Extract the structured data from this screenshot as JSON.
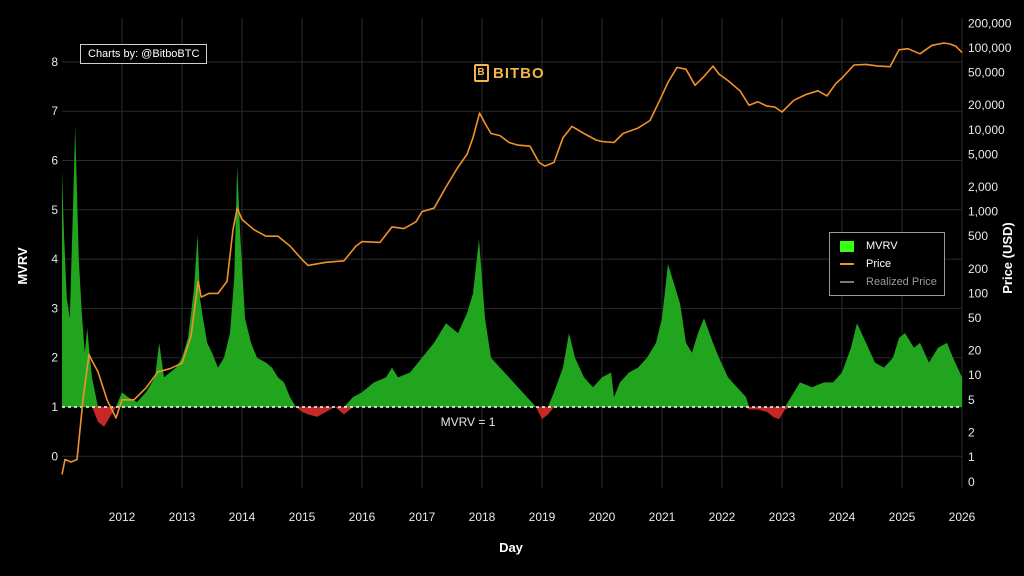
{
  "credit": "Charts by: @BitboBTC",
  "brand": {
    "name": "BITBO",
    "icon": "bitcoin-b-icon",
    "color": "#f3b64a"
  },
  "legend": {
    "items": [
      {
        "label": "MVRV",
        "color": "#39ff14",
        "kind": "box"
      },
      {
        "label": "Price",
        "color": "#f0922b",
        "kind": "line"
      },
      {
        "label": "Realized Price",
        "color": "#7a7a7a",
        "kind": "line"
      }
    ]
  },
  "chart_data": {
    "type": "area",
    "xlabel": "Day",
    "ylabel_left": "MVRV",
    "ylabel_right": "Price (USD)",
    "reference_line": {
      "y": 1,
      "label": "MVRV = 1"
    },
    "x_ticks": [
      "2012",
      "2013",
      "2014",
      "2015",
      "2016",
      "2017",
      "2018",
      "2019",
      "2020",
      "2021",
      "2022",
      "2023",
      "2024",
      "2025",
      "2026"
    ],
    "y_left_ticks": [
      "0",
      "1",
      "2",
      "3",
      "4",
      "5",
      "6",
      "7",
      "8"
    ],
    "y_right_ticks": [
      "0",
      "1",
      "2",
      "5",
      "10",
      "20",
      "50",
      "100",
      "200",
      "500",
      "1,000",
      "2,000",
      "5,000",
      "10,000",
      "20,000",
      "50,000",
      "100,000",
      "200,000"
    ],
    "xlim": [
      2011.0,
      2026.0
    ],
    "ylim_left": [
      -0.5,
      8.8
    ],
    "grid": true,
    "legend_position": "right",
    "colors": {
      "mvrv_above": "#22a51e",
      "mvrv_below": "#c62828",
      "price": "#f0922b",
      "reference": "#ffffff"
    },
    "series": [
      {
        "name": "MVRV",
        "x": [
          2011.0,
          2011.03,
          2011.08,
          2011.13,
          2011.18,
          2011.22,
          2011.28,
          2011.33,
          2011.38,
          2011.42,
          2011.45,
          2011.5,
          2011.6,
          2011.7,
          2011.8,
          2011.9,
          2012.0,
          2012.1,
          2012.25,
          2012.4,
          2012.55,
          2012.62,
          2012.7,
          2012.8,
          2012.9,
          2013.0,
          2013.1,
          2013.2,
          2013.26,
          2013.3,
          2013.35,
          2013.42,
          2013.5,
          2013.6,
          2013.7,
          2013.8,
          2013.87,
          2013.92,
          2013.97,
          2014.05,
          2014.15,
          2014.25,
          2014.4,
          2014.5,
          2014.6,
          2014.7,
          2014.8,
          2014.9,
          2015.0,
          2015.1,
          2015.25,
          2015.4,
          2015.55,
          2015.7,
          2015.85,
          2016.0,
          2016.2,
          2016.4,
          2016.5,
          2016.6,
          2016.8,
          2017.0,
          2017.2,
          2017.4,
          2017.6,
          2017.75,
          2017.85,
          2017.95,
          2018.05,
          2018.15,
          2018.3,
          2018.45,
          2018.6,
          2018.75,
          2018.9,
          2019.0,
          2019.1,
          2019.2,
          2019.35,
          2019.45,
          2019.55,
          2019.7,
          2019.85,
          2020.0,
          2020.15,
          2020.2,
          2020.3,
          2020.45,
          2020.6,
          2020.75,
          2020.9,
          2021.0,
          2021.1,
          2021.2,
          2021.3,
          2021.4,
          2021.5,
          2021.6,
          2021.7,
          2021.85,
          2021.95,
          2022.1,
          2022.25,
          2022.4,
          2022.45,
          2022.6,
          2022.75,
          2022.85,
          2022.95,
          2023.05,
          2023.15,
          2023.3,
          2023.5,
          2023.7,
          2023.85,
          2024.0,
          2024.15,
          2024.25,
          2024.4,
          2024.55,
          2024.7,
          2024.85,
          2024.95,
          2025.05,
          2025.2,
          2025.3,
          2025.45,
          2025.6,
          2025.75,
          2025.85,
          2026.0
        ],
        "values": [
          5.8,
          4.6,
          3.2,
          2.8,
          4.9,
          6.7,
          4.0,
          2.9,
          2.1,
          2.6,
          2.2,
          1.6,
          0.7,
          0.6,
          0.8,
          1.0,
          1.3,
          1.2,
          1.1,
          1.3,
          1.6,
          2.3,
          1.6,
          1.7,
          1.8,
          2.0,
          2.4,
          3.4,
          4.5,
          3.2,
          2.8,
          2.3,
          2.1,
          1.8,
          2.0,
          2.5,
          3.6,
          5.9,
          4.5,
          2.8,
          2.3,
          2.0,
          1.9,
          1.8,
          1.6,
          1.5,
          1.2,
          1.0,
          0.9,
          0.85,
          0.8,
          0.9,
          1.0,
          0.85,
          1.2,
          1.3,
          1.5,
          1.6,
          1.8,
          1.6,
          1.7,
          2.0,
          2.3,
          2.7,
          2.5,
          2.9,
          3.3,
          4.4,
          2.8,
          2.0,
          1.8,
          1.6,
          1.4,
          1.2,
          1.0,
          0.75,
          0.85,
          1.3,
          1.8,
          2.5,
          2.0,
          1.6,
          1.4,
          1.6,
          1.7,
          1.2,
          1.5,
          1.7,
          1.8,
          2.0,
          2.3,
          2.8,
          3.9,
          3.5,
          3.1,
          2.3,
          2.1,
          2.5,
          2.8,
          2.3,
          2.0,
          1.6,
          1.4,
          1.2,
          0.95,
          0.95,
          0.9,
          0.8,
          0.75,
          0.95,
          1.2,
          1.5,
          1.4,
          1.5,
          1.5,
          1.7,
          2.2,
          2.7,
          2.3,
          1.9,
          1.8,
          2.0,
          2.4,
          2.5,
          2.2,
          2.3,
          1.9,
          2.2,
          2.3,
          2.0,
          1.6
        ]
      },
      {
        "name": "Price",
        "x": [
          2011.0,
          2011.05,
          2011.15,
          2011.25,
          2011.35,
          2011.45,
          2011.5,
          2011.6,
          2011.75,
          2011.9,
          2012.0,
          2012.2,
          2012.4,
          2012.6,
          2012.8,
          2013.0,
          2013.15,
          2013.27,
          2013.32,
          2013.45,
          2013.6,
          2013.75,
          2013.85,
          2013.92,
          2014.0,
          2014.2,
          2014.4,
          2014.6,
          2014.8,
          2015.0,
          2015.1,
          2015.4,
          2015.7,
          2015.9,
          2016.0,
          2016.3,
          2016.5,
          2016.7,
          2016.9,
          2017.0,
          2017.2,
          2017.4,
          2017.6,
          2017.75,
          2017.85,
          2017.96,
          2018.05,
          2018.15,
          2018.3,
          2018.45,
          2018.6,
          2018.8,
          2018.95,
          2019.05,
          2019.2,
          2019.35,
          2019.5,
          2019.7,
          2019.9,
          2020.0,
          2020.2,
          2020.35,
          2020.6,
          2020.8,
          2020.95,
          2021.1,
          2021.25,
          2021.4,
          2021.55,
          2021.7,
          2021.85,
          2021.95,
          2022.1,
          2022.3,
          2022.45,
          2022.6,
          2022.75,
          2022.88,
          2023.0,
          2023.2,
          2023.4,
          2023.6,
          2023.75,
          2023.9,
          2024.0,
          2024.2,
          2024.4,
          2024.6,
          2024.8,
          2024.95,
          2025.1,
          2025.3,
          2025.5,
          2025.7,
          2025.8,
          2025.9,
          2026.0
        ],
        "values": [
          0.3,
          0.9,
          0.8,
          0.9,
          5,
          18,
          15,
          11,
          5,
          3,
          5,
          5,
          7,
          11,
          12,
          14,
          30,
          140,
          90,
          100,
          100,
          140,
          600,
          1100,
          800,
          600,
          500,
          500,
          380,
          260,
          220,
          240,
          250,
          380,
          430,
          420,
          650,
          620,
          750,
          1000,
          1100,
          2000,
          3500,
          5000,
          8000,
          16000,
          12000,
          9000,
          8500,
          7000,
          6500,
          6300,
          4000,
          3600,
          4000,
          8000,
          11000,
          9000,
          7500,
          7200,
          7000,
          9000,
          10500,
          13000,
          22000,
          38000,
          58000,
          55000,
          35000,
          45000,
          60000,
          48000,
          40000,
          30000,
          20000,
          22000,
          19500,
          19000,
          16500,
          23000,
          27000,
          30000,
          26000,
          37000,
          43000,
          62000,
          63000,
          60000,
          59000,
          95000,
          98000,
          85000,
          108000,
          115000,
          112000,
          105000,
          88000
        ]
      },
      {
        "name": "Realized Price",
        "x": [],
        "values": []
      }
    ]
  }
}
